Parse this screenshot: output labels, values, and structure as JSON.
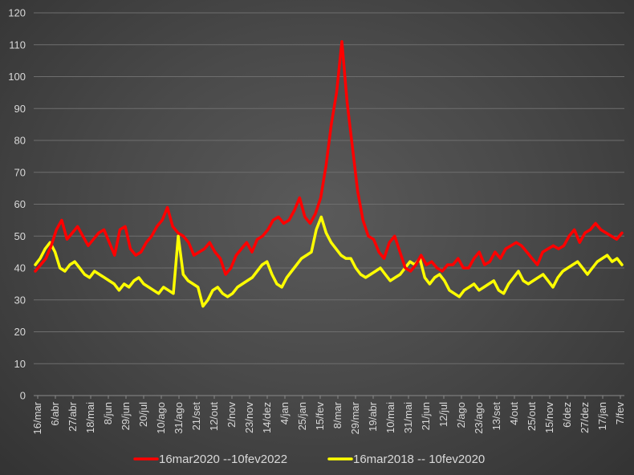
{
  "chart_data": {
    "type": "line",
    "title": "",
    "xlabel": "",
    "ylabel": "",
    "ylim": [
      0,
      120
    ],
    "ytick_step": 10,
    "grid": true,
    "legend_position": "bottom",
    "background_color": "#404040",
    "x_tick_labels": [
      "16/mar",
      "6/abr",
      "27/abr",
      "18/mai",
      "8/jun",
      "29/jun",
      "20/jul",
      "10/ago",
      "31/ago",
      "21/set",
      "12/out",
      "2/nov",
      "23/nov",
      "14/dez",
      "4/jan",
      "25/jan",
      "15/fev",
      "8/mar",
      "29/mar",
      "19/abr",
      "10/mai",
      "31/mai",
      "21/jun",
      "12/jul",
      "2/ago",
      "23/ago",
      "13/set",
      "4/out",
      "25/out",
      "15/nov",
      "6/dez",
      "27/dez",
      "17/jan",
      "7/fev"
    ],
    "series": [
      {
        "name": "16mar2020 --10fev2022",
        "color": "#ff0000",
        "values": [
          39,
          41,
          43,
          47,
          52,
          55,
          49,
          51,
          53,
          50,
          47,
          49,
          51,
          52,
          48,
          44,
          52,
          53,
          46,
          44,
          45,
          48,
          50,
          53,
          55,
          59,
          53,
          51,
          50,
          48,
          44,
          45,
          46,
          48,
          45,
          43,
          38,
          40,
          44,
          46,
          48,
          45,
          49,
          50,
          52,
          55,
          56,
          54,
          55,
          58,
          62,
          56,
          54,
          57,
          62,
          72,
          85,
          95,
          111,
          92,
          78,
          64,
          55,
          50,
          49,
          45,
          43,
          48,
          50,
          45,
          40,
          39,
          41,
          44,
          41,
          42,
          40,
          39,
          41,
          41,
          43,
          40,
          40,
          43,
          45,
          41,
          42,
          45,
          43,
          46,
          47,
          48,
          47,
          45,
          43,
          41,
          45,
          46,
          47,
          46,
          47,
          50,
          52,
          48,
          51,
          52,
          54,
          52,
          51,
          50,
          49,
          51
        ]
      },
      {
        "name": "16mar2018 -- 10fev2020",
        "color": "#ffff00",
        "values": [
          41,
          43,
          46,
          48,
          45,
          40,
          39,
          41,
          42,
          40,
          38,
          37,
          39,
          38,
          37,
          36,
          35,
          33,
          35,
          34,
          36,
          37,
          35,
          34,
          33,
          32,
          34,
          33,
          32,
          50,
          38,
          36,
          35,
          34,
          28,
          30,
          33,
          34,
          32,
          31,
          32,
          34,
          35,
          36,
          37,
          39,
          41,
          42,
          38,
          35,
          34,
          37,
          39,
          41,
          43,
          44,
          45,
          52,
          56,
          51,
          48,
          46,
          44,
          43,
          43,
          40,
          38,
          37,
          38,
          39,
          40,
          38,
          36,
          37,
          38,
          40,
          42,
          41,
          43,
          37,
          35,
          37,
          38,
          36,
          33,
          32,
          31,
          33,
          34,
          35,
          33,
          34,
          35,
          36,
          33,
          32,
          35,
          37,
          39,
          36,
          35,
          36,
          37,
          38,
          36,
          34,
          37,
          39,
          40,
          41,
          42,
          40,
          38,
          40,
          42,
          43,
          44,
          42,
          43,
          41
        ]
      }
    ]
  }
}
